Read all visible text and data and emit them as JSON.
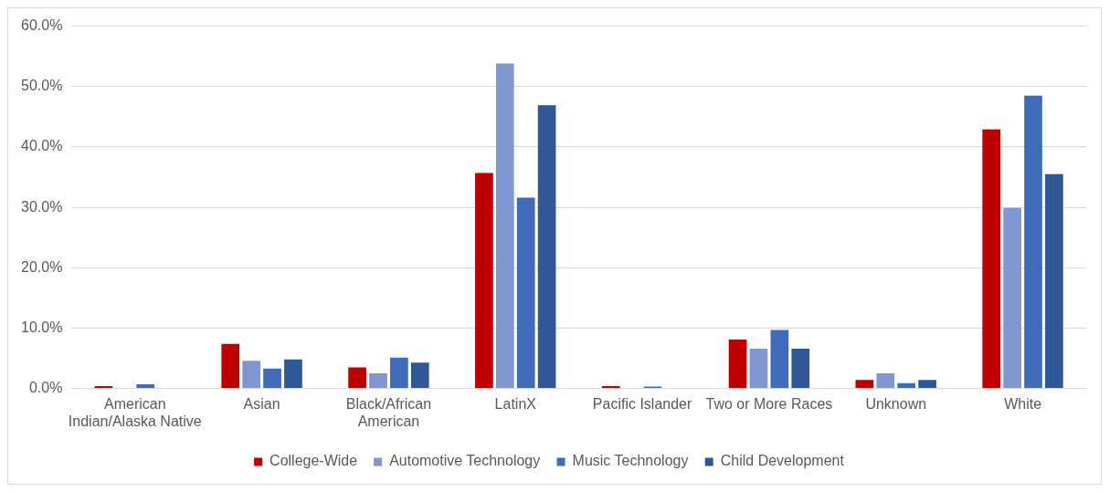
{
  "chart_data": {
    "type": "bar",
    "categories": [
      "American Indian/Alaska Native",
      "Asian",
      "Black/African American",
      "LatinX",
      "Pacific Islander",
      "Two or More Races",
      "Unknown",
      "White"
    ],
    "series": [
      {
        "name": "College-Wide",
        "color": "#c00000",
        "values": [
          0.4,
          7.4,
          3.5,
          35.7,
          0.4,
          8.1,
          1.4,
          42.9
        ]
      },
      {
        "name": "Automotive Technology",
        "color": "#7f96d0",
        "values": [
          0,
          4.6,
          2.5,
          53.8,
          0,
          6.6,
          2.5,
          29.9
        ]
      },
      {
        "name": "Music Technology",
        "color": "#3f6cb9",
        "values": [
          0.7,
          3.3,
          5.1,
          31.6,
          0.3,
          9.7,
          0.9,
          48.5
        ]
      },
      {
        "name": "Child Development",
        "color": "#305898",
        "values": [
          0,
          4.8,
          4.3,
          46.9,
          0,
          6.6,
          1.4,
          35.5
        ]
      }
    ],
    "ylim": [
      0,
      60
    ],
    "yticks": [
      {
        "value": 0,
        "label": "0.0%"
      },
      {
        "value": 10,
        "label": "10.0%"
      },
      {
        "value": 20,
        "label": "20.0%"
      },
      {
        "value": 30,
        "label": "30.0%"
      },
      {
        "value": 40,
        "label": "40.0%"
      },
      {
        "value": 50,
        "label": "50.0%"
      },
      {
        "value": 60,
        "label": "60.0%"
      }
    ],
    "grid": "y",
    "legend": "bottom"
  }
}
